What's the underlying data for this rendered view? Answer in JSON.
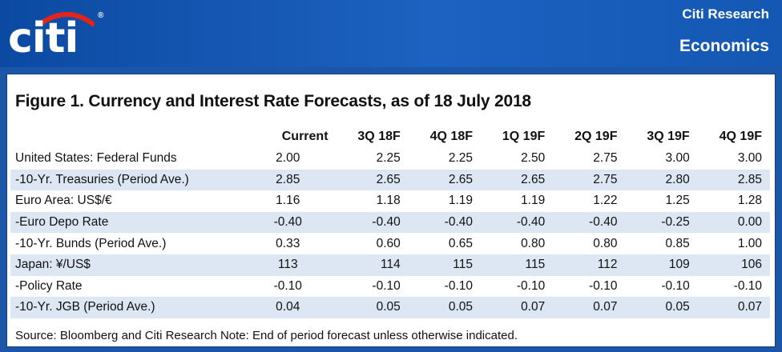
{
  "header": {
    "logo_text": "citi",
    "registered_mark": "®",
    "brand": "Citi Research",
    "division": "Economics"
  },
  "figure": {
    "title": "Figure 1. Currency and Interest Rate Forecasts, as of 18 July 2018",
    "columns": [
      "",
      "Current",
      "3Q 18F",
      "4Q 18F",
      "1Q 19F",
      "2Q 19F",
      "3Q 19F",
      "4Q 19F"
    ],
    "rows": [
      {
        "label": "United States: Federal Funds",
        "values": [
          "2.00",
          "2.25",
          "2.25",
          "2.50",
          "2.75",
          "3.00",
          "3.00"
        ]
      },
      {
        "label": "-10-Yr. Treasuries (Period Ave.)",
        "values": [
          "2.85",
          "2.65",
          "2.65",
          "2.65",
          "2.75",
          "2.80",
          "2.85"
        ]
      },
      {
        "label": "Euro Area: US$/€",
        "values": [
          "1.16",
          "1.18",
          "1.19",
          "1.19",
          "1.22",
          "1.25",
          "1.28"
        ]
      },
      {
        "label": "-Euro Depo Rate",
        "values": [
          "-0.40",
          "-0.40",
          "-0.40",
          "-0.40",
          "-0.40",
          "-0.25",
          "0.00"
        ]
      },
      {
        "label": "-10-Yr. Bunds (Period Ave.)",
        "values": [
          "0.33",
          "0.60",
          "0.65",
          "0.80",
          "0.80",
          "0.85",
          "1.00"
        ]
      },
      {
        "label": "Japan: ¥/US$",
        "values": [
          "113",
          "114",
          "115",
          "115",
          "112",
          "109",
          "106"
        ]
      },
      {
        "label": "-Policy Rate",
        "values": [
          "-0.10",
          "-0.10",
          "-0.10",
          "-0.10",
          "-0.10",
          "-0.10",
          "-0.10"
        ]
      },
      {
        "label": "-10-Yr. JGB (Period Ave.)",
        "values": [
          "0.04",
          "0.05",
          "0.05",
          "0.07",
          "0.07",
          "0.05",
          "0.07"
        ]
      }
    ],
    "source_note": "Source: Bloomberg and Citi Research Note: End of period forecast unless otherwise indicated."
  },
  "colors": {
    "header_blue": "#1458b4",
    "logo_arc_red": "#e3241b",
    "row_stripe": "#dce7f3"
  }
}
